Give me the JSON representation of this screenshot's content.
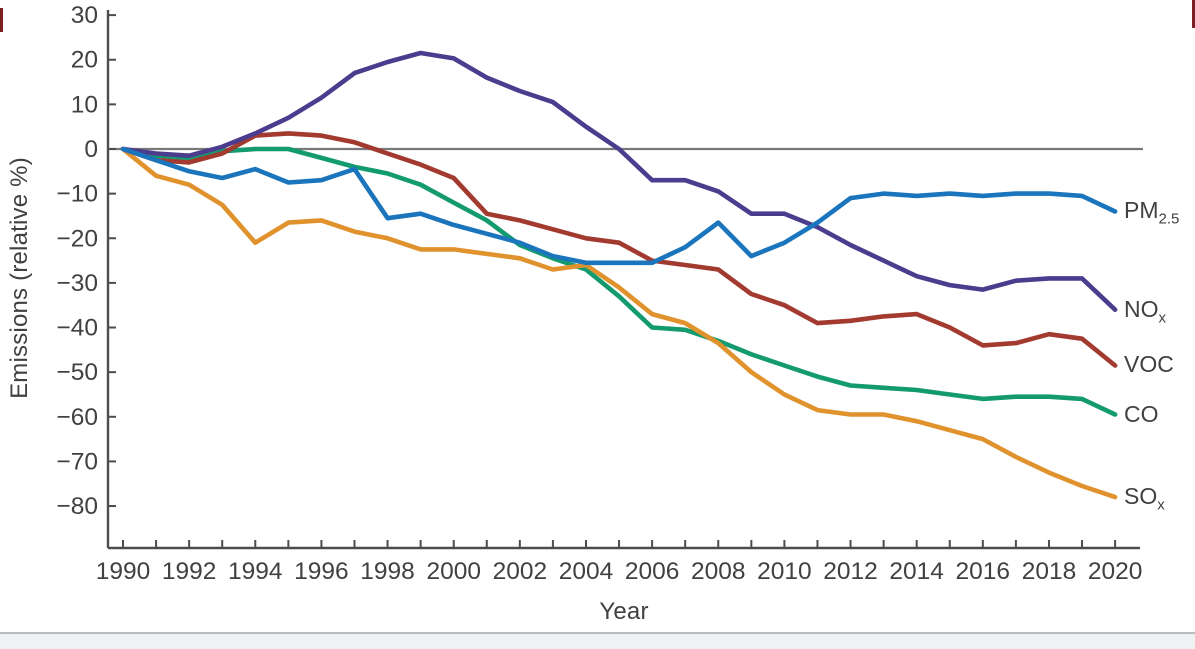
{
  "chart_data": {
    "type": "line",
    "title": "",
    "xlabel": "Year",
    "ylabel": "Emissions (relative %)",
    "x_start": 1990,
    "x_end": 2020,
    "x": [
      1990,
      1991,
      1992,
      1993,
      1994,
      1995,
      1996,
      1997,
      1998,
      1999,
      2000,
      2001,
      2002,
      2003,
      2004,
      2005,
      2006,
      2007,
      2008,
      2009,
      2010,
      2011,
      2012,
      2013,
      2014,
      2015,
      2016,
      2017,
      2018,
      2019,
      2020
    ],
    "x_tick_labels": [
      "1990",
      "1992",
      "1994",
      "1996",
      "1998",
      "2000",
      "2002",
      "2004",
      "2006",
      "2008",
      "2010",
      "2012",
      "2014",
      "2016",
      "2018",
      "2020"
    ],
    "y_ticks": [
      30,
      20,
      10,
      0,
      -10,
      -20,
      -30,
      -40,
      -50,
      -60,
      -70,
      -80
    ],
    "ylim": [
      -89,
      31
    ],
    "grid": false,
    "zero_line": true,
    "legend_position": "right-of-line-ends",
    "series": [
      {
        "name": "CO",
        "label_main": "CO",
        "label_sub": "",
        "color": "#149a6f",
        "values": [
          0,
          -1.5,
          -2,
          -0.5,
          0,
          0,
          -2,
          -4,
          -5.5,
          -8,
          -12,
          -16,
          -21.5,
          -24.5,
          -27,
          -33,
          -40,
          -40.5,
          -43,
          -46,
          -48.5,
          -51,
          -53,
          -53.5,
          -54,
          -55,
          -56,
          -55.5,
          -55.5,
          -56,
          -59.5
        ]
      },
      {
        "name": "SOx",
        "label_main": "SO",
        "label_sub": "x",
        "color": "#e0922d",
        "values": [
          0,
          -6,
          -8,
          -12.5,
          -21,
          -16.5,
          -16,
          -18.5,
          -20,
          -22.5,
          -22.5,
          -23.5,
          -24.5,
          -27,
          -26,
          -31,
          -37,
          -39,
          -43.5,
          -50,
          -55,
          -58.5,
          -59.5,
          -59.5,
          -61,
          -63,
          -65,
          -69,
          -72.5,
          -75.5,
          -78
        ]
      },
      {
        "name": "VOC",
        "label_main": "VOC",
        "label_sub": "",
        "color": "#a23a30",
        "values": [
          0,
          -2.5,
          -3,
          -1,
          3,
          3.5,
          3,
          1.5,
          -1,
          -3.5,
          -6.5,
          -14.5,
          -16,
          -18,
          -20,
          -21,
          -25,
          -26,
          -27,
          -32.5,
          -35,
          -39,
          -38.5,
          -37.5,
          -37,
          -40,
          -44,
          -43.5,
          -41.5,
          -42.5,
          -48.5
        ]
      },
      {
        "name": "NOx",
        "label_main": "NO",
        "label_sub": "x",
        "color": "#4c3c8e",
        "values": [
          0,
          -1,
          -1.5,
          0.5,
          3.5,
          7,
          11.5,
          17,
          19.5,
          21.5,
          20.3,
          16,
          13,
          10.5,
          5,
          0,
          -7,
          -7,
          -9.5,
          -14.5,
          -14.5,
          -17.5,
          -21.5,
          -25,
          -28.5,
          -30.5,
          -31.5,
          -29.5,
          -29,
          -29,
          -36
        ]
      },
      {
        "name": "PM2.5",
        "label_main": "PM",
        "label_sub": "2.5",
        "color": "#1b75bc",
        "values": [
          0,
          -2.5,
          -5,
          -6.5,
          -4.5,
          -7.5,
          -7,
          -4.5,
          -15.5,
          -14.5,
          -17,
          -19,
          -21,
          -24,
          -25.5,
          -25.5,
          -25.5,
          -22,
          -16.5,
          -24,
          -21,
          -16.5,
          -11,
          -10,
          -10.5,
          -10,
          -10.5,
          -10,
          -10,
          -10.5,
          -14
        ]
      }
    ]
  },
  "style_colors": {
    "axis": "#4d4d4f",
    "zero_line": "#77787a",
    "text": "#414042",
    "footer_strip": "#f0f1f2",
    "footer_line": "#b7bcbe",
    "edge_artifact": "#7e2022"
  }
}
